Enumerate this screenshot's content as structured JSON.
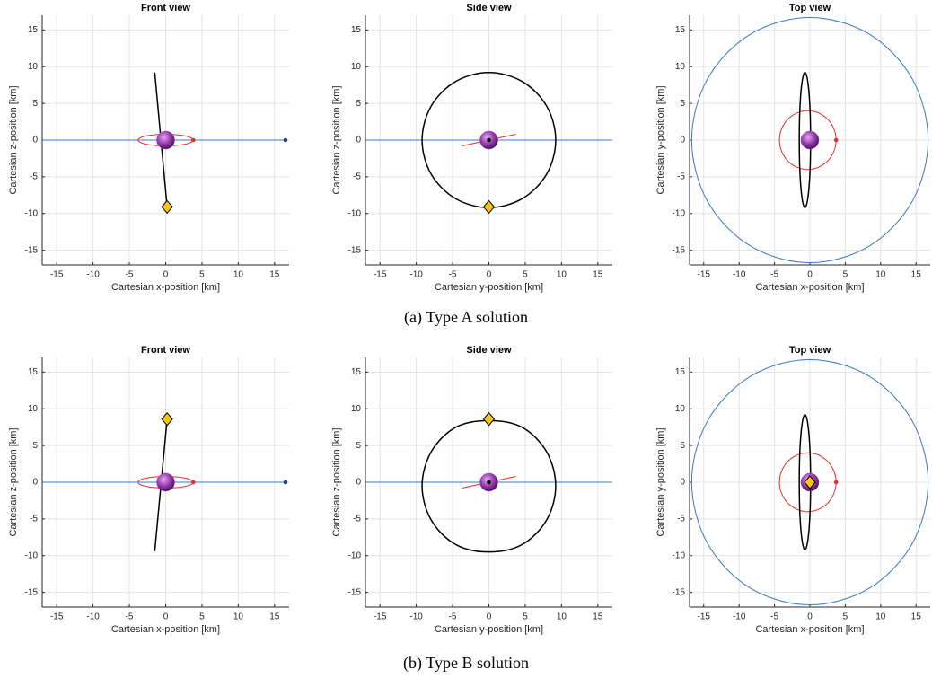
{
  "chart_data": [
    {
      "type": "line",
      "title": "Front view",
      "xlabel": "Cartesian x-position [km]",
      "ylabel": "Cartesian z-position [km]",
      "xlim": [
        -17,
        17
      ],
      "ylim": [
        -17,
        17
      ],
      "xticks": [
        -15,
        -10,
        -5,
        0,
        5,
        10,
        15
      ],
      "yticks": [
        -15,
        -10,
        -5,
        0,
        5,
        10,
        15
      ],
      "grid": true,
      "series": [
        {
          "color": "#3a78c0",
          "x": [
            -17,
            16.5
          ],
          "y": [
            0,
            0
          ]
        },
        {
          "color": "#e0302a",
          "closed": true,
          "x": [
            3.8,
            3.29,
            1.9,
            0,
            -1.9,
            -3.29,
            -3.8,
            -3.29,
            -1.9,
            0,
            1.9,
            3.29
          ],
          "y": [
            0,
            0.4,
            0.69,
            0.8,
            0.69,
            0.4,
            0,
            -0.4,
            -0.69,
            -0.8,
            -0.69,
            -0.4
          ]
        },
        {
          "color": "#000000",
          "x": [
            -1.5,
            0.2
          ],
          "y": [
            9.2,
            -9.1
          ]
        }
      ],
      "points": [
        {
          "marker": "circle",
          "color": "#2d3f8a",
          "x": 16.5,
          "y": 0
        },
        {
          "marker": "circle",
          "color": "#e0302a",
          "x": 3.8,
          "y": 0
        },
        {
          "marker": "sphere",
          "color": "#9b3fb0",
          "x": 0,
          "y": 0
        },
        {
          "marker": "diamond",
          "color": "#f5c518",
          "x": 0.2,
          "y": -9.1
        }
      ]
    },
    {
      "type": "line",
      "title": "Side view",
      "xlabel": "Cartesian y-position [km]",
      "ylabel": "Cartesian z-position [km]",
      "xlim": [
        -17,
        17
      ],
      "ylim": [
        -17,
        17
      ],
      "xticks": [
        -15,
        -10,
        -5,
        0,
        5,
        10,
        15
      ],
      "yticks": [
        -15,
        -10,
        -5,
        0,
        5,
        10,
        15
      ],
      "grid": true,
      "series": [
        {
          "color": "#3a78c0",
          "x": [
            -17,
            17
          ],
          "y": [
            0,
            0
          ]
        },
        {
          "color": "#000000",
          "closed": true,
          "x": [
            9.2,
            7.97,
            4.6,
            0,
            -4.6,
            -7.97,
            -9.2,
            -7.97,
            -4.6,
            0,
            4.6,
            7.97
          ],
          "y": [
            0,
            4.6,
            7.97,
            9.2,
            7.97,
            4.6,
            0,
            -4.6,
            -7.97,
            -9.2,
            -7.97,
            -4.6
          ]
        },
        {
          "color": "#e0302a",
          "x": [
            -3.7,
            3.7
          ],
          "y": [
            -0.8,
            0.8
          ]
        }
      ],
      "points": [
        {
          "marker": "sphere",
          "color": "#9b3fb0",
          "x": 0,
          "y": 0
        },
        {
          "marker": "circle",
          "color": "#000000",
          "x": 0,
          "y": 0
        },
        {
          "marker": "diamond",
          "color": "#f5c518",
          "x": 0,
          "y": -9.1
        }
      ]
    },
    {
      "type": "line",
      "title": "Top view",
      "xlabel": "Cartesian x-position [km]",
      "ylabel": "Cartesian y-position [km]",
      "xlim": [
        -17,
        17
      ],
      "ylim": [
        -17,
        17
      ],
      "xticks": [
        -15,
        -10,
        -5,
        0,
        5,
        10,
        15
      ],
      "yticks": [
        -15,
        -10,
        -5,
        0,
        5,
        10,
        15
      ],
      "grid": true,
      "series": [
        {
          "color": "#3a78c0",
          "closed": true,
          "x": [
            16.7,
            14.46,
            8.35,
            0,
            -8.35,
            -14.46,
            -16.7,
            -14.46,
            -8.35,
            0,
            8.35,
            14.46
          ],
          "y": [
            0,
            8.35,
            14.46,
            16.7,
            14.46,
            8.35,
            0,
            -8.35,
            -14.46,
            -16.7,
            -14.46,
            -8.35
          ]
        },
        {
          "color": "#e0302a",
          "closed": true,
          "x": [
            3.7,
            3.16,
            1.7,
            -0.3,
            -2.3,
            -3.76,
            -4.3,
            -3.76,
            -2.3,
            -0.3,
            1.7,
            3.16
          ],
          "y": [
            0,
            2,
            3.46,
            4,
            3.46,
            2,
            0,
            -2,
            -3.46,
            -4,
            -3.46,
            -2
          ]
        },
        {
          "color": "#000000",
          "closed": true,
          "x": [
            0.1,
            0,
            -0.3,
            -0.7,
            -1.1,
            -1.4,
            -1.5,
            -1.4,
            -1.1,
            -0.7,
            -0.3,
            0
          ],
          "y": [
            0,
            4.6,
            7.97,
            9.2,
            7.97,
            4.6,
            0,
            -4.6,
            -7.97,
            -9.2,
            -7.97,
            -4.6
          ]
        }
      ],
      "points": [
        {
          "marker": "sphere",
          "color": "#9b3fb0",
          "x": 0,
          "y": 0
        },
        {
          "marker": "circle",
          "color": "#e0302a",
          "x": 3.7,
          "y": 0
        }
      ]
    },
    {
      "type": "line",
      "title": "Front view",
      "xlabel": "Cartesian x-position [km]",
      "ylabel": "Cartesian z-position [km]",
      "xlim": [
        -17,
        17
      ],
      "ylim": [
        -17,
        17
      ],
      "xticks": [
        -15,
        -10,
        -5,
        0,
        5,
        10,
        15
      ],
      "yticks": [
        -15,
        -10,
        -5,
        0,
        5,
        10,
        15
      ],
      "grid": true,
      "series": [
        {
          "color": "#3a78c0",
          "x": [
            -17,
            16.5
          ],
          "y": [
            0,
            0
          ]
        },
        {
          "color": "#e0302a",
          "closed": true,
          "x": [
            3.8,
            3.29,
            1.9,
            0,
            -1.9,
            -3.29,
            -3.8,
            -3.29,
            -1.9,
            0,
            1.9,
            3.29
          ],
          "y": [
            0,
            0.4,
            0.69,
            0.8,
            0.69,
            0.4,
            0,
            -0.4,
            -0.69,
            -0.8,
            -0.69,
            -0.4
          ]
        },
        {
          "color": "#000000",
          "x": [
            0.2,
            -1.5
          ],
          "y": [
            8.6,
            -9.4
          ]
        }
      ],
      "points": [
        {
          "marker": "circle",
          "color": "#2d3f8a",
          "x": 16.5,
          "y": 0
        },
        {
          "marker": "circle",
          "color": "#e0302a",
          "x": 3.8,
          "y": 0
        },
        {
          "marker": "sphere",
          "color": "#9b3fb0",
          "x": 0,
          "y": 0
        },
        {
          "marker": "diamond",
          "color": "#f5c518",
          "x": 0.2,
          "y": 8.6
        }
      ]
    },
    {
      "type": "line",
      "title": "Side view",
      "xlabel": "Cartesian y-position [km]",
      "ylabel": "Cartesian z-position [km]",
      "xlim": [
        -17,
        17
      ],
      "ylim": [
        -17,
        17
      ],
      "xticks": [
        -15,
        -10,
        -5,
        0,
        5,
        10,
        15
      ],
      "yticks": [
        -15,
        -10,
        -5,
        0,
        5,
        10,
        15
      ],
      "grid": true,
      "series": [
        {
          "color": "#3a78c0",
          "x": [
            -17,
            17
          ],
          "y": [
            0,
            0
          ]
        },
        {
          "color": "#000000",
          "closed": true,
          "x": [
            9.2,
            7.97,
            4.6,
            0,
            -4.6,
            -7.97,
            -9.2,
            -7.97,
            -4.6,
            0,
            4.6,
            7.97
          ],
          "y": [
            -0.5,
            4.1,
            7.47,
            8.4,
            7.47,
            4.1,
            -0.5,
            -5.1,
            -8.47,
            -9.5,
            -8.47,
            -5.1
          ]
        },
        {
          "color": "#e0302a",
          "x": [
            -3.7,
            3.7
          ],
          "y": [
            -0.8,
            0.8
          ]
        }
      ],
      "points": [
        {
          "marker": "sphere",
          "color": "#9b3fb0",
          "x": 0,
          "y": 0
        },
        {
          "marker": "circle",
          "color": "#000000",
          "x": 0,
          "y": 0
        },
        {
          "marker": "diamond",
          "color": "#f5c518",
          "x": 0,
          "y": 8.6
        }
      ]
    },
    {
      "type": "line",
      "title": "Top view",
      "xlabel": "Cartesian x-position [km]",
      "ylabel": "Cartesian y-position [km]",
      "xlim": [
        -17,
        17
      ],
      "ylim": [
        -17,
        17
      ],
      "xticks": [
        -15,
        -10,
        -5,
        0,
        5,
        10,
        15
      ],
      "yticks": [
        -15,
        -10,
        -5,
        0,
        5,
        10,
        15
      ],
      "grid": true,
      "series": [
        {
          "color": "#3a78c0",
          "closed": true,
          "x": [
            16.7,
            14.46,
            8.35,
            0,
            -8.35,
            -14.46,
            -16.7,
            -14.46,
            -8.35,
            0,
            8.35,
            14.46
          ],
          "y": [
            0,
            8.35,
            14.46,
            16.7,
            14.46,
            8.35,
            0,
            -8.35,
            -14.46,
            -16.7,
            -14.46,
            -8.35
          ]
        },
        {
          "color": "#e0302a",
          "closed": true,
          "x": [
            3.7,
            3.16,
            1.7,
            -0.3,
            -2.3,
            -3.76,
            -4.3,
            -3.76,
            -2.3,
            -0.3,
            1.7,
            3.16
          ],
          "y": [
            0,
            2,
            3.46,
            4,
            3.46,
            2,
            0,
            -2,
            -3.46,
            -4,
            -3.46,
            -2
          ]
        },
        {
          "color": "#000000",
          "closed": true,
          "x": [
            0.1,
            0,
            -0.3,
            -0.7,
            -1.1,
            -1.4,
            -1.5,
            -1.4,
            -1.1,
            -0.7,
            -0.3,
            0
          ],
          "y": [
            0,
            4.6,
            7.97,
            9.2,
            7.97,
            4.6,
            0,
            -4.6,
            -7.97,
            -9.2,
            -7.97,
            -4.6
          ]
        }
      ],
      "points": [
        {
          "marker": "sphere",
          "color": "#9b3fb0",
          "x": 0,
          "y": 0
        },
        {
          "marker": "circle",
          "color": "#e0302a",
          "x": 3.7,
          "y": 0
        },
        {
          "marker": "diamond",
          "color": "#f5c518",
          "x": 0,
          "y": 0
        }
      ]
    }
  ],
  "captions": [
    "(a) Type A solution",
    "(b) Type B solution"
  ]
}
